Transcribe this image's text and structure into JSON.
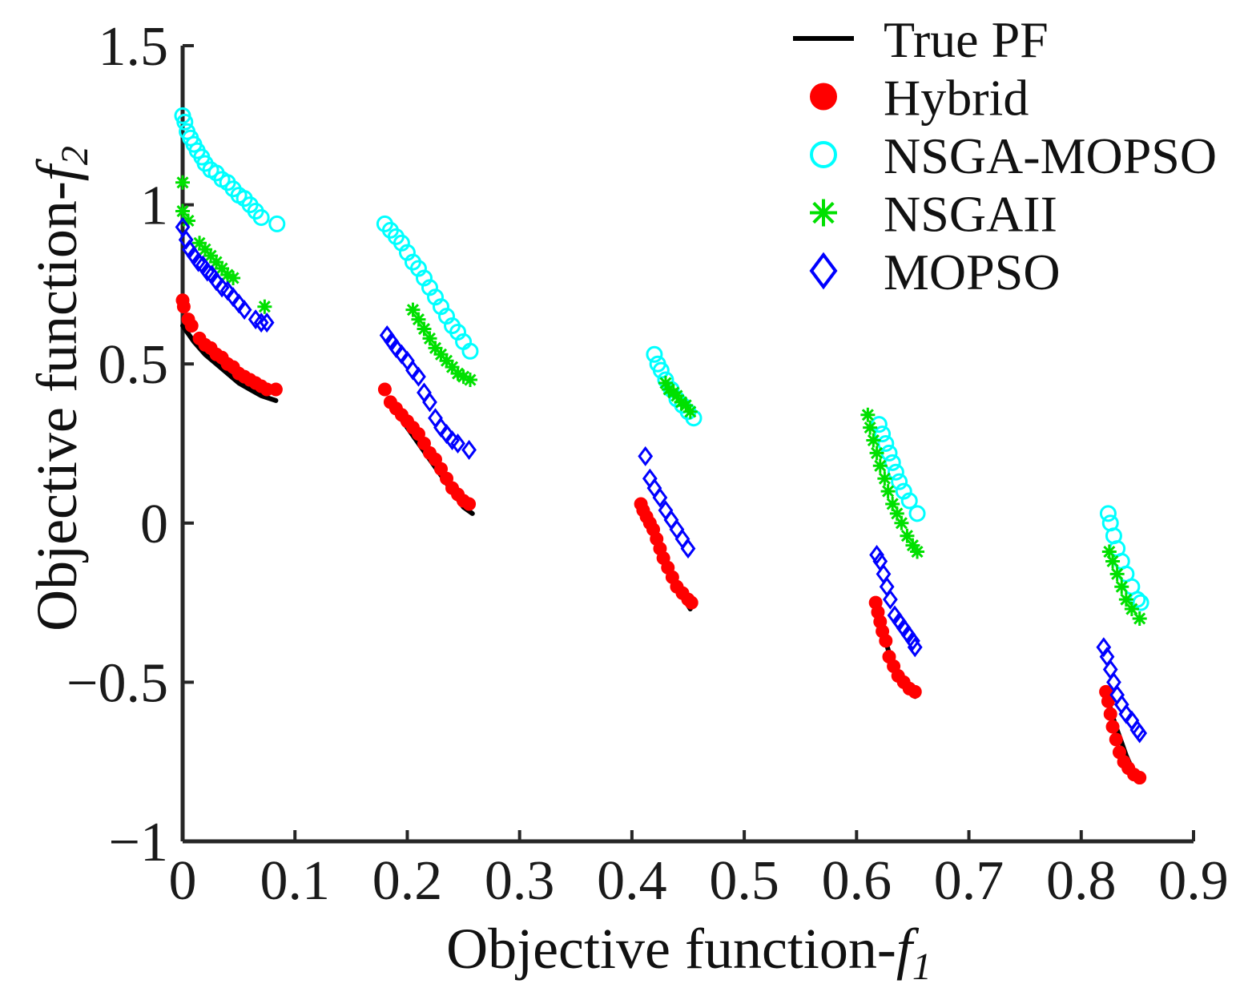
{
  "chart_data": {
    "type": "scatter",
    "xlabel": "Objective function-",
    "xlabel_sub": "f",
    "xlabel_subscript": "1",
    "ylabel": "Objective function-",
    "ylabel_sub": "f",
    "ylabel_subscript": "2",
    "xlim": [
      0,
      0.9
    ],
    "ylim": [
      -1,
      1.5
    ],
    "xticks": [
      0,
      0.1,
      0.2,
      0.3,
      0.4,
      0.5,
      0.6,
      0.7,
      0.8,
      0.9
    ],
    "xtick_labels": [
      "0",
      "0.1",
      "0.2",
      "0.3",
      "0.4",
      "0.5",
      "0.6",
      "0.7",
      "0.8",
      "0.9"
    ],
    "yticks": [
      -1,
      -0.5,
      0,
      0.5,
      1,
      1.5
    ],
    "ytick_labels": [
      "−1",
      "−0.5",
      "0",
      "0.5",
      "1",
      "1.5"
    ],
    "grid": false,
    "legend_position": "top-right",
    "series": [
      {
        "name": "True PF",
        "marker": "line",
        "color": "#000000",
        "segments": [
          [
            [
              0.0,
              0.62
            ],
            [
              0.01,
              0.57
            ],
            [
              0.02,
              0.53
            ],
            [
              0.03,
              0.5
            ],
            [
              0.04,
              0.47
            ],
            [
              0.05,
              0.44
            ],
            [
              0.06,
              0.42
            ],
            [
              0.07,
              0.4
            ],
            [
              0.083,
              0.385
            ]
          ],
          [
            [
              0.183,
              0.39
            ],
            [
              0.19,
              0.35
            ],
            [
              0.2,
              0.3
            ],
            [
              0.21,
              0.25
            ],
            [
              0.22,
              0.2
            ],
            [
              0.23,
              0.15
            ],
            [
              0.24,
              0.1
            ],
            [
              0.25,
              0.05
            ],
            [
              0.258,
              0.03
            ]
          ],
          [
            [
              0.41,
              0.05
            ],
            [
              0.415,
              0.0
            ],
            [
              0.42,
              -0.05
            ],
            [
              0.425,
              -0.09
            ],
            [
              0.43,
              -0.13
            ],
            [
              0.435,
              -0.17
            ],
            [
              0.44,
              -0.2
            ],
            [
              0.445,
              -0.23
            ],
            [
              0.452,
              -0.27
            ]
          ],
          [
            [
              0.618,
              -0.25
            ],
            [
              0.62,
              -0.3
            ],
            [
              0.625,
              -0.36
            ],
            [
              0.63,
              -0.42
            ],
            [
              0.635,
              -0.46
            ],
            [
              0.64,
              -0.5
            ],
            [
              0.645,
              -0.52
            ],
            [
              0.652,
              -0.545
            ]
          ],
          [
            [
              0.823,
              -0.53
            ],
            [
              0.825,
              -0.57
            ],
            [
              0.83,
              -0.63
            ],
            [
              0.835,
              -0.68
            ],
            [
              0.84,
              -0.73
            ],
            [
              0.845,
              -0.77
            ],
            [
              0.852,
              -0.81
            ]
          ]
        ]
      },
      {
        "name": "Hybrid",
        "marker": "filled-circle",
        "color": "#ff0000",
        "points": [
          [
            0.0,
            0.7
          ],
          [
            0.001,
            0.68
          ],
          [
            0.005,
            0.64
          ],
          [
            0.008,
            0.62
          ],
          [
            0.015,
            0.58
          ],
          [
            0.02,
            0.56
          ],
          [
            0.025,
            0.55
          ],
          [
            0.03,
            0.53
          ],
          [
            0.035,
            0.52
          ],
          [
            0.04,
            0.5
          ],
          [
            0.045,
            0.49
          ],
          [
            0.05,
            0.47
          ],
          [
            0.055,
            0.46
          ],
          [
            0.06,
            0.45
          ],
          [
            0.065,
            0.44
          ],
          [
            0.07,
            0.43
          ],
          [
            0.075,
            0.42
          ],
          [
            0.083,
            0.42
          ],
          [
            0.18,
            0.42
          ],
          [
            0.185,
            0.38
          ],
          [
            0.19,
            0.36
          ],
          [
            0.195,
            0.34
          ],
          [
            0.2,
            0.32
          ],
          [
            0.205,
            0.3
          ],
          [
            0.21,
            0.28
          ],
          [
            0.215,
            0.25
          ],
          [
            0.22,
            0.22
          ],
          [
            0.225,
            0.2
          ],
          [
            0.23,
            0.17
          ],
          [
            0.235,
            0.14
          ],
          [
            0.24,
            0.11
          ],
          [
            0.245,
            0.09
          ],
          [
            0.25,
            0.07
          ],
          [
            0.255,
            0.06
          ],
          [
            0.408,
            0.06
          ],
          [
            0.41,
            0.04
          ],
          [
            0.413,
            0.02
          ],
          [
            0.416,
            0.0
          ],
          [
            0.419,
            -0.02
          ],
          [
            0.422,
            -0.05
          ],
          [
            0.425,
            -0.08
          ],
          [
            0.428,
            -0.11
          ],
          [
            0.432,
            -0.14
          ],
          [
            0.436,
            -0.17
          ],
          [
            0.44,
            -0.2
          ],
          [
            0.445,
            -0.22
          ],
          [
            0.45,
            -0.24
          ],
          [
            0.453,
            -0.25
          ],
          [
            0.617,
            -0.25
          ],
          [
            0.619,
            -0.28
          ],
          [
            0.621,
            -0.31
          ],
          [
            0.623,
            -0.34
          ],
          [
            0.626,
            -0.37
          ],
          [
            0.629,
            -0.42
          ],
          [
            0.633,
            -0.45
          ],
          [
            0.637,
            -0.48
          ],
          [
            0.642,
            -0.5
          ],
          [
            0.647,
            -0.52
          ],
          [
            0.652,
            -0.53
          ],
          [
            0.822,
            -0.53
          ],
          [
            0.824,
            -0.56
          ],
          [
            0.826,
            -0.6
          ],
          [
            0.828,
            -0.64
          ],
          [
            0.831,
            -0.68
          ],
          [
            0.834,
            -0.72
          ],
          [
            0.838,
            -0.75
          ],
          [
            0.842,
            -0.77
          ],
          [
            0.847,
            -0.79
          ],
          [
            0.852,
            -0.8
          ]
        ]
      },
      {
        "name": "NSGA-MOPSO",
        "marker": "open-circle",
        "color": "#00ffff",
        "points": [
          [
            0.0,
            1.28
          ],
          [
            0.002,
            1.26
          ],
          [
            0.004,
            1.23
          ],
          [
            0.007,
            1.21
          ],
          [
            0.01,
            1.19
          ],
          [
            0.013,
            1.17
          ],
          [
            0.017,
            1.15
          ],
          [
            0.02,
            1.13
          ],
          [
            0.025,
            1.11
          ],
          [
            0.03,
            1.1
          ],
          [
            0.035,
            1.08
          ],
          [
            0.04,
            1.07
          ],
          [
            0.045,
            1.05
          ],
          [
            0.05,
            1.03
          ],
          [
            0.055,
            1.02
          ],
          [
            0.06,
            1.0
          ],
          [
            0.065,
            0.98
          ],
          [
            0.07,
            0.96
          ],
          [
            0.084,
            0.94
          ],
          [
            0.18,
            0.94
          ],
          [
            0.185,
            0.92
          ],
          [
            0.19,
            0.9
          ],
          [
            0.195,
            0.88
          ],
          [
            0.2,
            0.85
          ],
          [
            0.205,
            0.82
          ],
          [
            0.21,
            0.8
          ],
          [
            0.215,
            0.77
          ],
          [
            0.22,
            0.74
          ],
          [
            0.225,
            0.71
          ],
          [
            0.23,
            0.68
          ],
          [
            0.235,
            0.65
          ],
          [
            0.24,
            0.62
          ],
          [
            0.245,
            0.6
          ],
          [
            0.25,
            0.57
          ],
          [
            0.256,
            0.54
          ],
          [
            0.42,
            0.53
          ],
          [
            0.423,
            0.5
          ],
          [
            0.426,
            0.48
          ],
          [
            0.43,
            0.45
          ],
          [
            0.435,
            0.42
          ],
          [
            0.44,
            0.39
          ],
          [
            0.445,
            0.37
          ],
          [
            0.45,
            0.35
          ],
          [
            0.455,
            0.33
          ],
          [
            0.62,
            0.31
          ],
          [
            0.623,
            0.28
          ],
          [
            0.626,
            0.25
          ],
          [
            0.629,
            0.22
          ],
          [
            0.632,
            0.19
          ],
          [
            0.635,
            0.16
          ],
          [
            0.638,
            0.13
          ],
          [
            0.642,
            0.1
          ],
          [
            0.647,
            0.07
          ],
          [
            0.654,
            0.03
          ],
          [
            0.824,
            0.03
          ],
          [
            0.826,
            0.0
          ],
          [
            0.829,
            -0.04
          ],
          [
            0.832,
            -0.08
          ],
          [
            0.836,
            -0.12
          ],
          [
            0.84,
            -0.16
          ],
          [
            0.845,
            -0.2
          ],
          [
            0.85,
            -0.24
          ],
          [
            0.853,
            -0.25
          ]
        ]
      },
      {
        "name": "NSGAII",
        "marker": "asterisk",
        "color": "#00e000",
        "points": [
          [
            0.0,
            1.07
          ],
          [
            0.0,
            0.98
          ],
          [
            0.005,
            0.95
          ],
          [
            0.015,
            0.88
          ],
          [
            0.02,
            0.86
          ],
          [
            0.025,
            0.84
          ],
          [
            0.03,
            0.82
          ],
          [
            0.035,
            0.8
          ],
          [
            0.04,
            0.78
          ],
          [
            0.045,
            0.77
          ],
          [
            0.073,
            0.68
          ],
          [
            0.205,
            0.67
          ],
          [
            0.21,
            0.64
          ],
          [
            0.215,
            0.61
          ],
          [
            0.22,
            0.58
          ],
          [
            0.225,
            0.55
          ],
          [
            0.23,
            0.53
          ],
          [
            0.235,
            0.51
          ],
          [
            0.24,
            0.49
          ],
          [
            0.245,
            0.47
          ],
          [
            0.25,
            0.46
          ],
          [
            0.256,
            0.45
          ],
          [
            0.43,
            0.44
          ],
          [
            0.433,
            0.42
          ],
          [
            0.437,
            0.41
          ],
          [
            0.44,
            0.4
          ],
          [
            0.444,
            0.38
          ],
          [
            0.448,
            0.37
          ],
          [
            0.452,
            0.35
          ],
          [
            0.61,
            0.34
          ],
          [
            0.612,
            0.3
          ],
          [
            0.615,
            0.26
          ],
          [
            0.618,
            0.22
          ],
          [
            0.621,
            0.18
          ],
          [
            0.625,
            0.14
          ],
          [
            0.628,
            0.1
          ],
          [
            0.632,
            0.06
          ],
          [
            0.636,
            0.03
          ],
          [
            0.64,
            0.0
          ],
          [
            0.645,
            -0.04
          ],
          [
            0.65,
            -0.07
          ],
          [
            0.654,
            -0.09
          ],
          [
            0.825,
            -0.09
          ],
          [
            0.828,
            -0.12
          ],
          [
            0.832,
            -0.16
          ],
          [
            0.836,
            -0.2
          ],
          [
            0.84,
            -0.24
          ],
          [
            0.845,
            -0.27
          ],
          [
            0.852,
            -0.3
          ]
        ]
      },
      {
        "name": "MOPSO",
        "marker": "open-diamond",
        "color": "#0000ff",
        "points": [
          [
            0.0,
            0.93
          ],
          [
            0.003,
            0.89
          ],
          [
            0.006,
            0.86
          ],
          [
            0.01,
            0.84
          ],
          [
            0.014,
            0.82
          ],
          [
            0.018,
            0.81
          ],
          [
            0.022,
            0.79
          ],
          [
            0.026,
            0.78
          ],
          [
            0.03,
            0.76
          ],
          [
            0.035,
            0.74
          ],
          [
            0.04,
            0.73
          ],
          [
            0.045,
            0.71
          ],
          [
            0.05,
            0.69
          ],
          [
            0.055,
            0.67
          ],
          [
            0.065,
            0.64
          ],
          [
            0.07,
            0.63
          ],
          [
            0.075,
            0.63
          ],
          [
            0.182,
            0.59
          ],
          [
            0.186,
            0.57
          ],
          [
            0.19,
            0.55
          ],
          [
            0.195,
            0.53
          ],
          [
            0.2,
            0.51
          ],
          [
            0.205,
            0.48
          ],
          [
            0.21,
            0.46
          ],
          [
            0.215,
            0.41
          ],
          [
            0.22,
            0.38
          ],
          [
            0.225,
            0.33
          ],
          [
            0.23,
            0.3
          ],
          [
            0.235,
            0.28
          ],
          [
            0.24,
            0.26
          ],
          [
            0.245,
            0.25
          ],
          [
            0.255,
            0.23
          ],
          [
            0.412,
            0.21
          ],
          [
            0.416,
            0.14
          ],
          [
            0.42,
            0.11
          ],
          [
            0.425,
            0.08
          ],
          [
            0.43,
            0.04
          ],
          [
            0.435,
            0.01
          ],
          [
            0.44,
            -0.02
          ],
          [
            0.445,
            -0.05
          ],
          [
            0.45,
            -0.08
          ],
          [
            0.618,
            -0.1
          ],
          [
            0.621,
            -0.12
          ],
          [
            0.624,
            -0.16
          ],
          [
            0.627,
            -0.2
          ],
          [
            0.63,
            -0.24
          ],
          [
            0.634,
            -0.29
          ],
          [
            0.638,
            -0.31
          ],
          [
            0.642,
            -0.33
          ],
          [
            0.646,
            -0.35
          ],
          [
            0.65,
            -0.37
          ],
          [
            0.652,
            -0.39
          ],
          [
            0.82,
            -0.39
          ],
          [
            0.823,
            -0.42
          ],
          [
            0.826,
            -0.46
          ],
          [
            0.829,
            -0.5
          ],
          [
            0.832,
            -0.54
          ],
          [
            0.836,
            -0.57
          ],
          [
            0.84,
            -0.6
          ],
          [
            0.845,
            -0.62
          ],
          [
            0.85,
            -0.65
          ],
          [
            0.852,
            -0.66
          ]
        ]
      }
    ]
  }
}
